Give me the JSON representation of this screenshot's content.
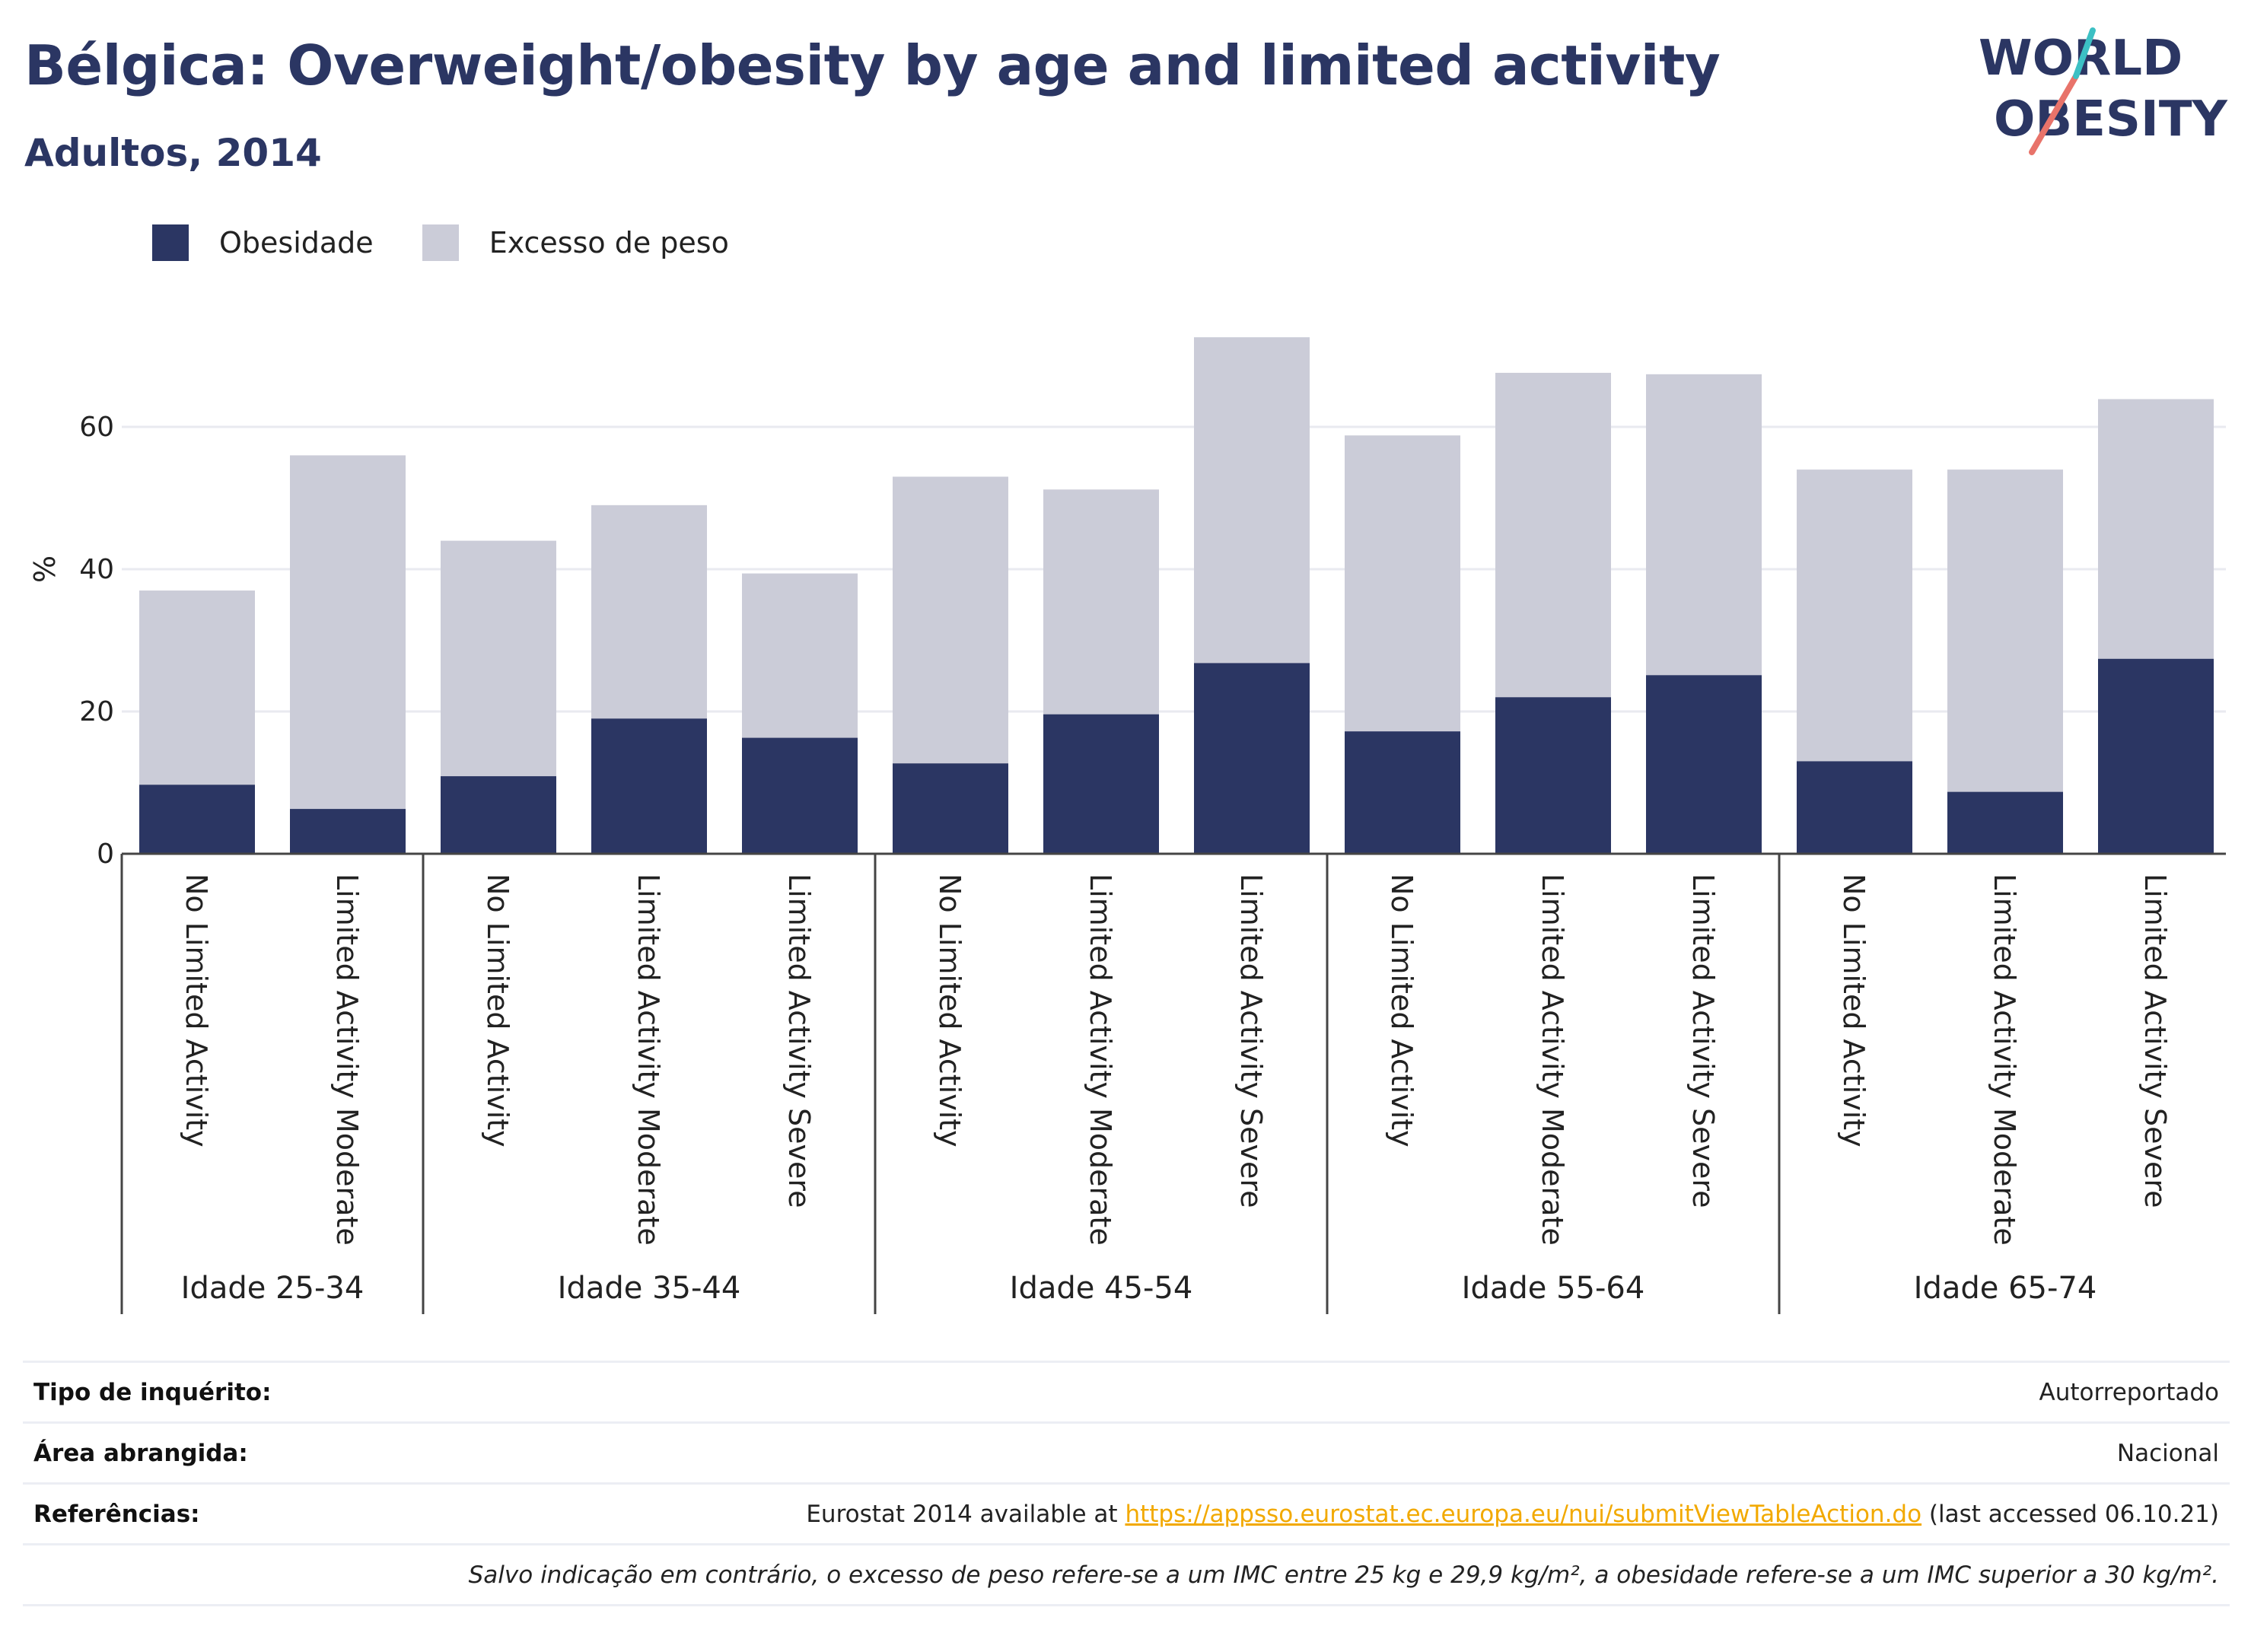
{
  "header": {
    "title": "Bélgica: Overweight/obesity by age and limited activity",
    "subtitle": "Adultos, 2014"
  },
  "logo": {
    "line1": "WORLD",
    "line2": "OBESITY"
  },
  "legend": {
    "items": [
      {
        "label": "Obesidade",
        "color": "#2b3663"
      },
      {
        "label": "Excesso de peso",
        "color": "#cbccd8"
      }
    ]
  },
  "chart_data": {
    "type": "bar",
    "stacked": false,
    "overlay": true,
    "ylabel": "%",
    "ylim": [
      0,
      75
    ],
    "yticks": [
      0,
      20,
      40,
      60
    ],
    "grid": true,
    "legend_position": "top-left",
    "groups": [
      {
        "label": "Idade 25-34",
        "categories": [
          "No Limited Activity",
          "Limited Activity Moderate"
        ]
      },
      {
        "label": "Idade 35-44",
        "categories": [
          "No Limited Activity",
          "Limited Activity Moderate",
          "Limited Activity Severe"
        ]
      },
      {
        "label": "Idade 45-54",
        "categories": [
          "No Limited Activity",
          "Limited Activity Moderate",
          "Limited Activity Severe"
        ]
      },
      {
        "label": "Idade 55-64",
        "categories": [
          "No Limited Activity",
          "Limited Activity Moderate",
          "Limited Activity Severe"
        ]
      },
      {
        "label": "Idade 65-74",
        "categories": [
          "No Limited Activity",
          "Limited Activity Moderate",
          "Limited Activity Severe"
        ]
      }
    ],
    "series": [
      {
        "name": "Excesso de peso",
        "color": "#cbccd8",
        "values": [
          37.0,
          56.0,
          44.0,
          49.0,
          39.4,
          53.0,
          51.2,
          72.6,
          58.8,
          67.6,
          67.4,
          54.0,
          54.0,
          63.9
        ]
      },
      {
        "name": "Obesidade",
        "color": "#2b3663",
        "values": [
          9.7,
          6.3,
          10.9,
          19.0,
          16.3,
          12.7,
          19.6,
          26.8,
          17.2,
          22.0,
          25.1,
          13.0,
          8.7,
          27.4
        ]
      }
    ]
  },
  "meta": {
    "rows": [
      {
        "key": "Tipo de inquérito:",
        "value": "Autorreportado"
      },
      {
        "key": "Área abrangida:",
        "value": "Nacional"
      }
    ],
    "references": {
      "key": "Referências:",
      "prefix": "Eurostat 2014 available at ",
      "link": "https://appsso.eurostat.ec.europa.eu/nui/submitViewTableAction.do",
      "suffix": " (last accessed 06.10.21)"
    },
    "note": "Salvo indicação em contrário, o excesso de peso refere-se a um IMC entre 25 kg e 29,9 kg/m², a obesidade refere-se a um IMC superior a 30 kg/m²."
  }
}
